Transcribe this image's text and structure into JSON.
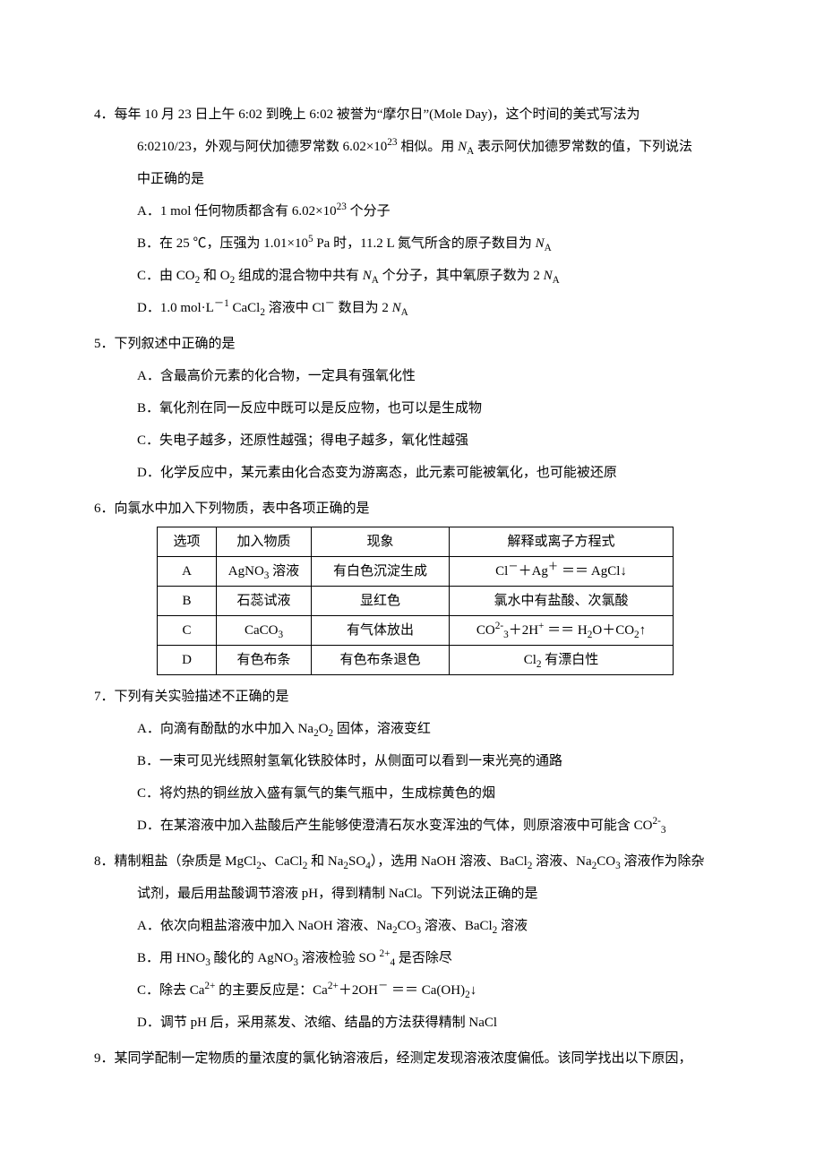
{
  "q4": {
    "stem1": "4．每年 10 月 23 日上午 6:02 到晚上 6:02 被誉为“摩尔日”(Mole Day)，这个时间的美式写法为",
    "stem2_pre": "6:0210/23，外观与阿伏加德罗常数 6.02×10",
    "stem2_exp": "23",
    "stem2_mid": " 相似。用 ",
    "stem2_na": "N",
    "stem2_sub": "A",
    "stem2_tail": " 表示阿伏加德罗常数的值，下列说法",
    "stem3": "中正确的是",
    "A_pre": "A．1 mol 任何物质都含有 6.02×10",
    "A_exp": "23",
    "A_tail": " 个分子",
    "B_pre": "B．在 25 ℃，压强为 1.01×10",
    "B_exp": "5",
    "B_mid": " Pa 时，11.2 L 氮气所含的原子数目为 ",
    "B_na": "N",
    "B_sub": "A",
    "C_pre": "C．由 CO",
    "C_sub1": "2",
    "C_mid1": " 和 O",
    "C_sub2": "2",
    "C_mid2": " 组成的混合物中共有 ",
    "C_na1": "N",
    "C_asub1": "A",
    "C_mid3": " 个分子，其中氧原子数为 2 ",
    "C_na2": "N",
    "C_asub2": "A",
    "D_pre": "D．1.0 mol·L",
    "D_sup": "－1",
    "D_mid": " CaCl",
    "D_sub": "2",
    "D_mid2": " 溶液中 Cl",
    "D_sup2": "－",
    "D_tail": " 数目为 2 ",
    "D_na": "N",
    "D_asub": "A"
  },
  "q5": {
    "stem": "5．下列叙述中正确的是",
    "A": "A．含最高价元素的化合物，一定具有强氧化性",
    "B": "B．氧化剂在同一反应中既可以是反应物，也可以是生成物",
    "C": "C．失电子越多，还原性越强；得电子越多，氧化性越强",
    "D": "D．化学反应中，某元素由化合态变为游离态，此元素可能被氧化，也可能被还原"
  },
  "q6": {
    "stem": "6．向氯水中加入下列物质，表中各项正确的是",
    "headers": [
      "选项",
      "加入物质",
      "现象",
      "解释或离子方程式"
    ],
    "rows": [
      {
        "opt": "A",
        "add_pre": "AgNO",
        "add_sub": "3",
        "add_tail": " 溶液",
        "phen": "有白色沉淀生成",
        "expl_pre": "Cl",
        "expl_sup1": "－",
        "expl_mid1": "＋Ag",
        "expl_sup2": "＋",
        "expl_mid2": " ＝＝ AgCl↓"
      },
      {
        "opt": "B",
        "add": "石蕊试液",
        "phen": "显红色",
        "expl": "氯水中有盐酸、次氯酸"
      },
      {
        "opt": "C",
        "add_pre": "CaCO",
        "add_sub": "3",
        "phen": "有气体放出",
        "expl_pre": "CO",
        "expl_sup1": "2-",
        "expl_sub1": "3",
        "expl_mid": "＋2H",
        "expl_sup2": "+",
        "expl_mid2": " ＝＝ H",
        "expl_sub2": "2",
        "expl_mid3": "O＋CO",
        "expl_sub3": "2",
        "expl_tail": "↑"
      },
      {
        "opt": "D",
        "add": "有色布条",
        "phen": "有色布条退色",
        "expl_pre": "Cl",
        "expl_sub": "2",
        "expl_tail": " 有漂白性"
      }
    ]
  },
  "q7": {
    "stem": "7．下列有关实验描述不正确的是",
    "A_pre": "A．向滴有酚酞的水中加入 Na",
    "A_sub1": "2",
    "A_mid": "O",
    "A_sub2": "2",
    "A_tail": " 固体，溶液变红",
    "B": "B．一束可见光线照射氢氧化铁胶体时，从侧面可以看到一束光亮的通路",
    "C": "C．将灼热的铜丝放入盛有氯气的集气瓶中，生成棕黄色的烟",
    "D_pre": "D．在某溶液中加入盐酸后产生能够使澄清石灰水变浑浊的气体，则原溶液中可能含 CO",
    "D_sup": "2-",
    "D_sub": "3"
  },
  "q8": {
    "stem1_pre": "8．精制粗盐（杂质是 MgCl",
    "s1_sub1": "2",
    "s1_mid1": "、CaCl",
    "s1_sub2": "2",
    "s1_mid2": " 和 Na",
    "s1_sub3": "2",
    "s1_mid3": "SO",
    "s1_sub4": "4",
    "s1_mid4": "），选用 NaOH 溶液、BaCl",
    "s1_sub5": "2",
    "s1_mid5": " 溶液、Na",
    "s1_sub6": "2",
    "s1_mid6": "CO",
    "s1_sub7": "3",
    "s1_tail": " 溶液作为除杂",
    "stem2": "试剂，最后用盐酸调节溶液 pH，得到精制 NaCl。下列说法正确的是",
    "A_pre": "A．依次向粗盐溶液中加入 NaOH 溶液、Na",
    "A_sub1": "2",
    "A_mid1": "CO",
    "A_sub2": "3",
    "A_mid2": " 溶液、BaCl",
    "A_sub3": "2",
    "A_tail": " 溶液",
    "B_pre": "B．用 HNO",
    "B_sub1": "3",
    "B_mid1": " 酸化的 AgNO",
    "B_sub2": "3",
    "B_mid2": " 溶液检验 SO ",
    "B_sup": "2+",
    "B_sub3": "4",
    "B_tail": " 是否除尽",
    "C_pre": "C．除去 Ca",
    "C_sup1": "2+",
    "C_mid1": " 的主要反应是：Ca",
    "C_sup2": "2+",
    "C_mid2": "＋2OH",
    "C_sup3": "－",
    "C_mid3": " ＝＝ Ca(OH)",
    "C_sub": "2",
    "C_tail": "↓",
    "D": "D．调节 pH 后，采用蒸发、浓缩、结晶的方法获得精制 NaCl"
  },
  "q9": {
    "stem": "9．某同学配制一定物质的量浓度的氯化钠溶液后，经测定发现溶液浓度偏低。该同学找出以下原因，"
  }
}
